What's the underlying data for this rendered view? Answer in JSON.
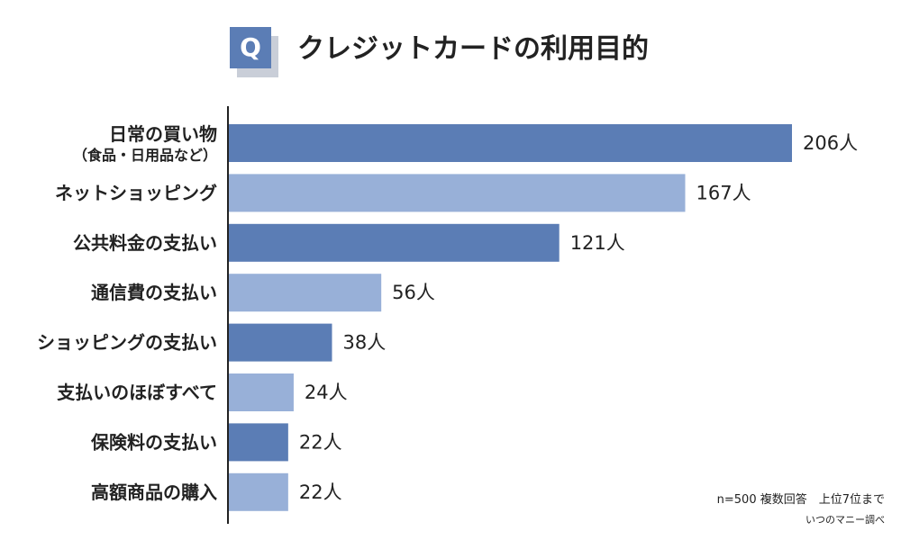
{
  "question_badge": "Q",
  "chart_data": {
    "type": "bar",
    "orientation": "horizontal",
    "title": "クレジットカードの利用目的",
    "categories": [
      "日常の買い物（食品・日用品など）",
      "ネットショッピング",
      "公共料金の支払い",
      "通信費の支払い",
      "ショッピングの支払い",
      "支払いのほぼすべて",
      "保険料の支払い",
      "高額商品の購入"
    ],
    "category_lines": [
      [
        "日常の買い物",
        "（食品・日用品など）"
      ],
      [
        "ネットショッピング"
      ],
      [
        "公共料金の支払い"
      ],
      [
        "通信費の支払い"
      ],
      [
        "ショッピングの支払い"
      ],
      [
        "支払いのほぼすべて"
      ],
      [
        "保険料の支払い"
      ],
      [
        "高額商品の購入"
      ]
    ],
    "values": [
      206,
      167,
      121,
      56,
      38,
      24,
      22,
      22
    ],
    "value_labels": [
      "206人",
      "167人",
      "121人",
      "56人",
      "38人",
      "24人",
      "22人",
      "22人"
    ],
    "unit": "人",
    "xlim": [
      0,
      206
    ],
    "xlabel": "",
    "ylabel": "",
    "grid": false,
    "legend": "none",
    "colors": [
      "#5b7db5",
      "#98b0d8"
    ]
  },
  "notes": {
    "sample": "n=500 複数回答　上位7位まで",
    "source": "いつのマニー調べ"
  }
}
